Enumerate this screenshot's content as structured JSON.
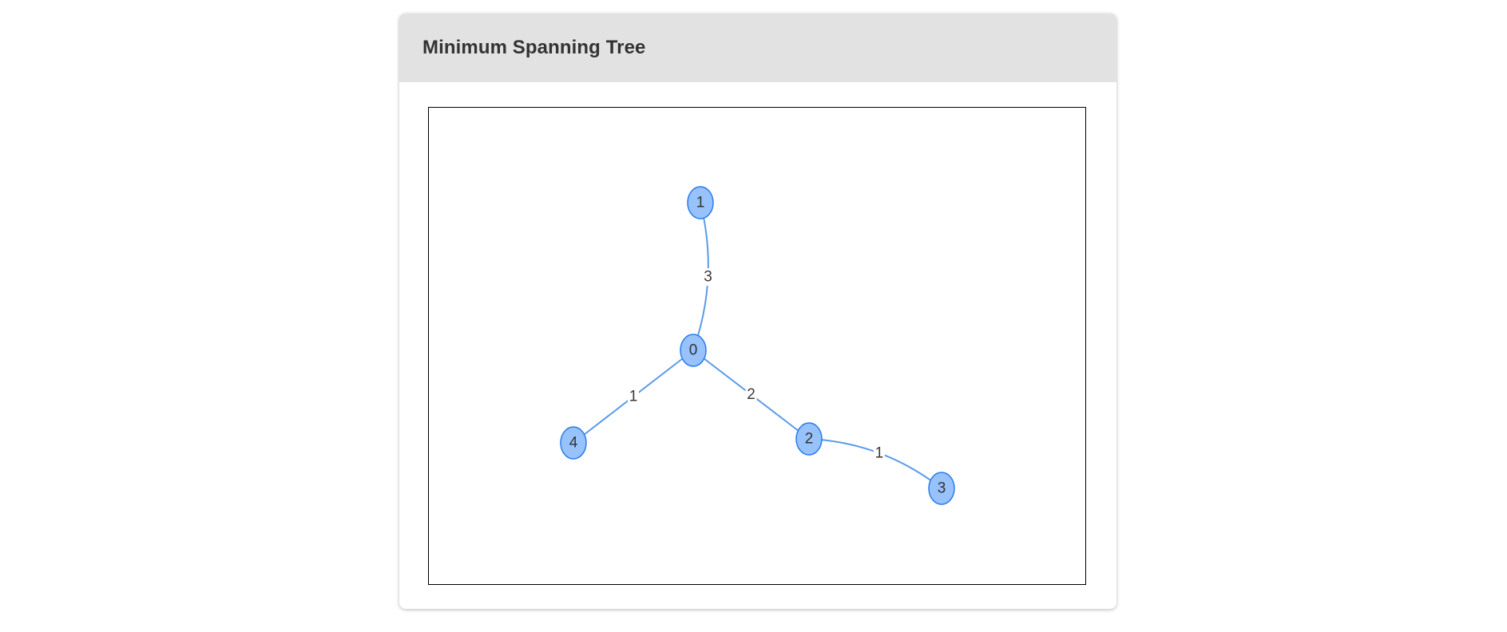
{
  "card": {
    "title": "Minimum Spanning Tree"
  },
  "graph": {
    "colors": {
      "edge": "#5a9bea",
      "node_fill": "#97c2fc",
      "node_border": "#2b7ce9",
      "label_halo": "#ffffff"
    },
    "nodes": [
      {
        "id": "0",
        "label": "0"
      },
      {
        "id": "1",
        "label": "1"
      },
      {
        "id": "2",
        "label": "2"
      },
      {
        "id": "3",
        "label": "3"
      },
      {
        "id": "4",
        "label": "4"
      }
    ],
    "edges": [
      {
        "from": "0",
        "to": "1",
        "label": "3"
      },
      {
        "from": "0",
        "to": "4",
        "label": "1"
      },
      {
        "from": "0",
        "to": "2",
        "label": "2"
      },
      {
        "from": "2",
        "to": "3",
        "label": "1"
      }
    ]
  }
}
